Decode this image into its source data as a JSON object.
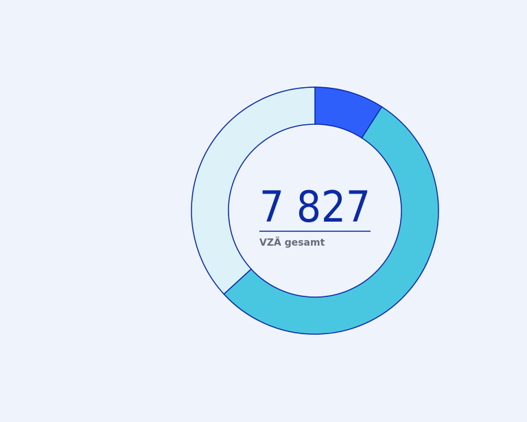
{
  "chart_data": {
    "type": "donut",
    "values": [
      9.1,
      54.1,
      36.8
    ],
    "colors": [
      "#2f5ffb",
      "#4ac7e0",
      "#dcf2f8"
    ],
    "center_value": "7 827",
    "center_label": "VZÄ gesamt"
  }
}
